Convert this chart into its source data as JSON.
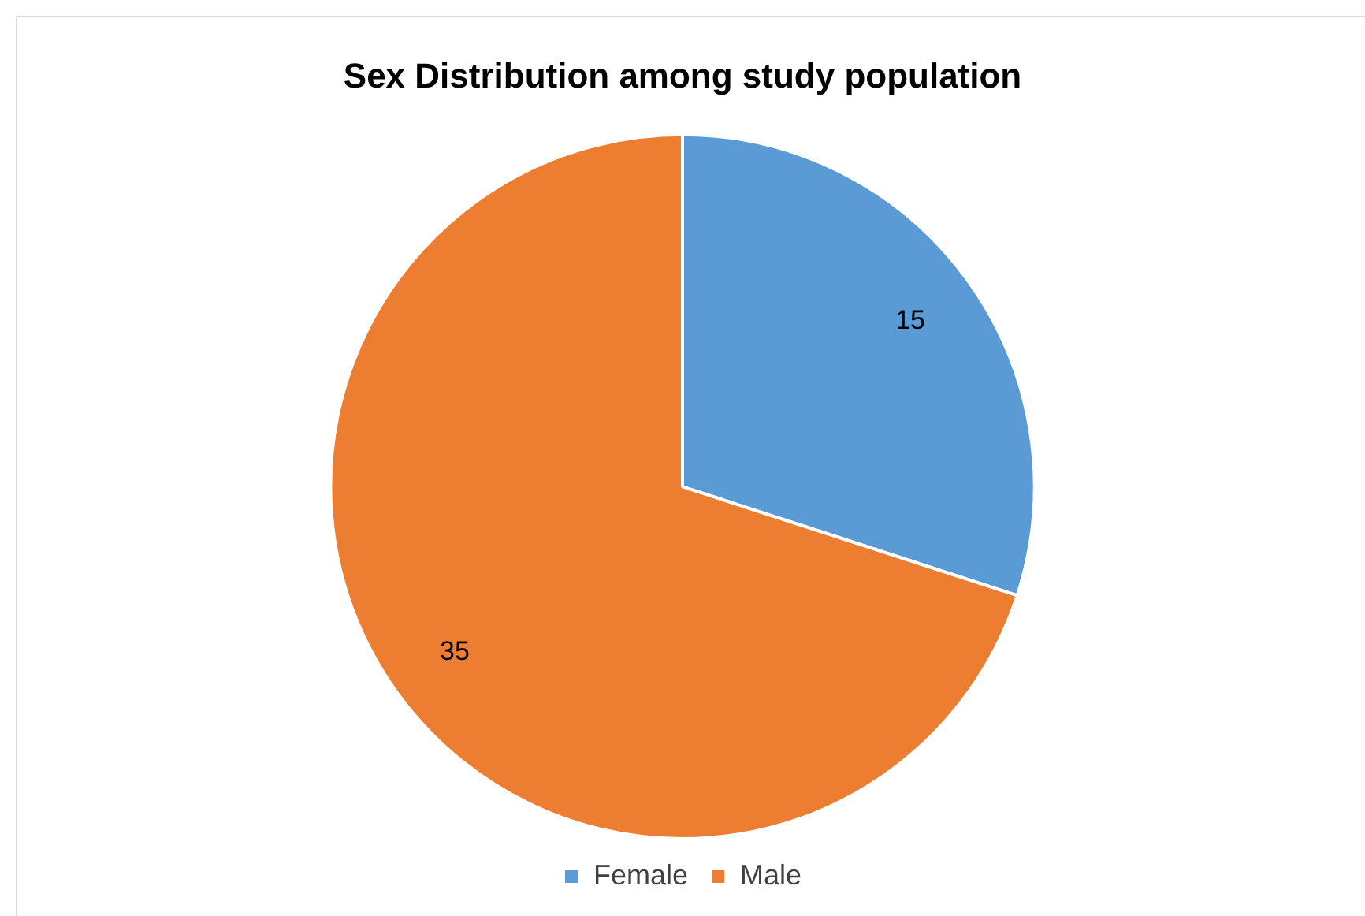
{
  "chart_data": {
    "type": "pie",
    "title": "Sex Distribution among study population",
    "categories": [
      "Female",
      "Male"
    ],
    "values": [
      15,
      35
    ],
    "colors": [
      "#5b9bd5",
      "#ed7d31"
    ],
    "data_labels": true,
    "legend": "bottom"
  }
}
